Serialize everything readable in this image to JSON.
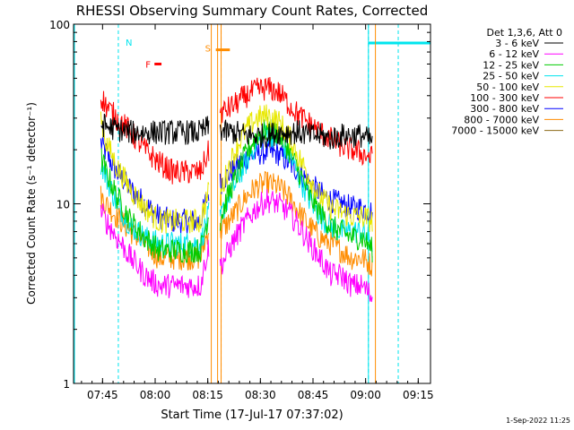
{
  "chart_data": {
    "type": "line",
    "title": "RHESSI Observing Summary Count Rates, Corrected",
    "xlabel": "Start Time (17-Jul-17 07:37:02)",
    "ylabel": "Corrected Count Rate (s⁻¹ detector⁻¹)",
    "ylog": true,
    "xlim": [
      -0.27,
      101.5
    ],
    "ylim": [
      1,
      100
    ],
    "x_ticks": [
      {
        "x": 8,
        "label": "07:45"
      },
      {
        "x": 23,
        "label": "08:00"
      },
      {
        "x": 38,
        "label": "08:15"
      },
      {
        "x": 53,
        "label": "08:30"
      },
      {
        "x": 68,
        "label": "08:45"
      },
      {
        "x": 83,
        "label": "09:00"
      },
      {
        "x": 98,
        "label": "09:15"
      }
    ],
    "y_ticks": [
      {
        "y": 1,
        "label": "1"
      },
      {
        "y": 10,
        "label": "10"
      },
      {
        "y": 100,
        "label": "100"
      }
    ],
    "legend_title": "Det 1,3,6, Att 0",
    "legend_position": "right",
    "series": [
      {
        "name": "3 - 6 keV",
        "color": "#000000",
        "x": [
          7.5,
          9,
          12,
          16,
          20,
          24,
          28,
          32,
          36,
          38.5,
          41.5,
          43,
          46,
          49,
          52,
          55,
          58,
          61,
          64,
          67,
          70,
          73,
          76,
          79,
          82,
          85
        ],
        "y": [
          28,
          27,
          26,
          25,
          25,
          25,
          25,
          25,
          25,
          27,
          26,
          25,
          25,
          24,
          24,
          24,
          25,
          25,
          25,
          24,
          24,
          23,
          24,
          24,
          24,
          22
        ]
      },
      {
        "name": "6 - 12 keV",
        "color": "#ff00ff",
        "x": [
          7.5,
          9,
          12,
          16,
          20,
          24,
          28,
          32,
          36,
          38.5,
          41.5,
          43,
          46,
          49,
          52,
          55,
          58,
          61,
          64,
          67,
          70,
          73,
          76,
          79,
          82,
          85
        ],
        "y": [
          9,
          8,
          6.5,
          5,
          4,
          3.5,
          3.5,
          3.5,
          3.5,
          6,
          4.5,
          5,
          6.5,
          8,
          9.5,
          10.5,
          10,
          9,
          7.5,
          6,
          5,
          4,
          4,
          3.5,
          3.5,
          3
        ]
      },
      {
        "name": "12 - 25 keV",
        "color": "#00cc00",
        "x": [
          7.5,
          9,
          12,
          16,
          20,
          24,
          28,
          32,
          36,
          38.5,
          41.5,
          43,
          46,
          49,
          52,
          55,
          58,
          61,
          64,
          67,
          70,
          73,
          76,
          79,
          82,
          85
        ],
        "y": [
          18,
          15,
          11,
          8,
          6.5,
          5.5,
          5.5,
          5.5,
          5.5,
          9,
          8,
          10,
          14,
          19,
          24,
          26,
          25,
          20,
          15,
          11,
          9,
          7.5,
          7,
          6.5,
          6.5,
          5.5
        ]
      },
      {
        "name": "25 - 50 keV",
        "color": "#00e5ee",
        "x": [
          7.5,
          9,
          12,
          16,
          20,
          24,
          28,
          32,
          36,
          38.5,
          41.5,
          43,
          46,
          49,
          52,
          55,
          58,
          61,
          64,
          67,
          70,
          73,
          76,
          79,
          82,
          85
        ],
        "y": [
          17,
          14,
          10,
          7.5,
          6.5,
          6,
          6,
          6,
          6,
          9,
          8,
          10,
          13,
          17,
          22,
          25,
          23,
          19,
          14,
          10.5,
          8.5,
          7.5,
          7,
          7,
          7,
          6
        ]
      },
      {
        "name": "50 - 100 keV",
        "color": "#e8e800",
        "x": [
          7.5,
          9,
          12,
          16,
          20,
          24,
          28,
          32,
          36,
          38.5,
          41.5,
          43,
          46,
          49,
          52,
          55,
          58,
          61,
          64,
          67,
          70,
          73,
          76,
          79,
          82,
          85
        ],
        "y": [
          30,
          22,
          16,
          12,
          9.5,
          8,
          8,
          8,
          8,
          12,
          11,
          14,
          20,
          26,
          30,
          31,
          29,
          24,
          18,
          14,
          11,
          9.5,
          9,
          8.5,
          8.5,
          8
        ]
      },
      {
        "name": "100 - 300 keV",
        "color": "#ff0000",
        "x": [
          7.5,
          9,
          12,
          16,
          20,
          24,
          28,
          32,
          36,
          38.5,
          41.5,
          43,
          46,
          49,
          52,
          55,
          58,
          61,
          64,
          67,
          70,
          73,
          76,
          79,
          82,
          85
        ],
        "y": [
          40,
          35,
          30,
          25,
          20,
          17,
          15,
          15,
          15,
          20,
          32,
          33,
          36,
          40,
          43,
          44,
          42,
          36,
          31,
          28,
          25,
          23,
          21,
          20,
          19,
          18
        ]
      },
      {
        "name": "300 - 800 keV",
        "color": "#0000ff",
        "x": [
          7.5,
          9,
          12,
          16,
          20,
          24,
          28,
          32,
          36,
          38.5,
          41.5,
          43,
          46,
          49,
          52,
          55,
          58,
          61,
          64,
          67,
          70,
          73,
          76,
          79,
          82,
          85
        ],
        "y": [
          22,
          19,
          15,
          12,
          10,
          8.5,
          8,
          8,
          8,
          12,
          13,
          14,
          16,
          18,
          19,
          19.5,
          19,
          17,
          15,
          13,
          11.5,
          10.5,
          10,
          9.5,
          9.5,
          9
        ]
      },
      {
        "name": "800 - 7000 keV",
        "color": "#ff8c00",
        "x": [
          7.5,
          9,
          12,
          16,
          20,
          24,
          28,
          32,
          36,
          38.5,
          41.5,
          43,
          46,
          49,
          52,
          55,
          58,
          61,
          64,
          67,
          70,
          73,
          76,
          79,
          82,
          85
        ],
        "y": [
          11,
          10,
          8.5,
          7,
          6,
          5,
          5,
          5,
          5,
          7.5,
          7,
          7.5,
          9,
          11,
          12.5,
          13,
          12.5,
          11,
          9,
          7.5,
          6.5,
          6,
          5.5,
          5,
          5,
          4.5
        ]
      },
      {
        "name": "7000 - 15000 keV",
        "color": "#8b6914",
        "x": [],
        "y": []
      }
    ],
    "annotations": {
      "saa_intervals": [
        {
          "start": -0.27,
          "end": 0,
          "label": ""
        },
        {
          "start": 83.8,
          "end": 101.5,
          "label": ""
        }
      ],
      "night_intervals": [
        {
          "start": 12.5,
          "end": 83.8,
          "label": "N"
        },
        {
          "start": 41.8,
          "end": 92.3,
          "label": ""
        }
      ],
      "flare_flag": {
        "start": 22.8,
        "end": 24.8,
        "y": 60,
        "label": "F"
      },
      "saa_flag": {
        "start": 40.3,
        "end": 44.3,
        "y": 72,
        "label": "S"
      },
      "orange_lines": [
        39,
        40.8,
        41.8,
        85.8
      ]
    },
    "footer_date": "1-Sep-2022 11:25"
  }
}
